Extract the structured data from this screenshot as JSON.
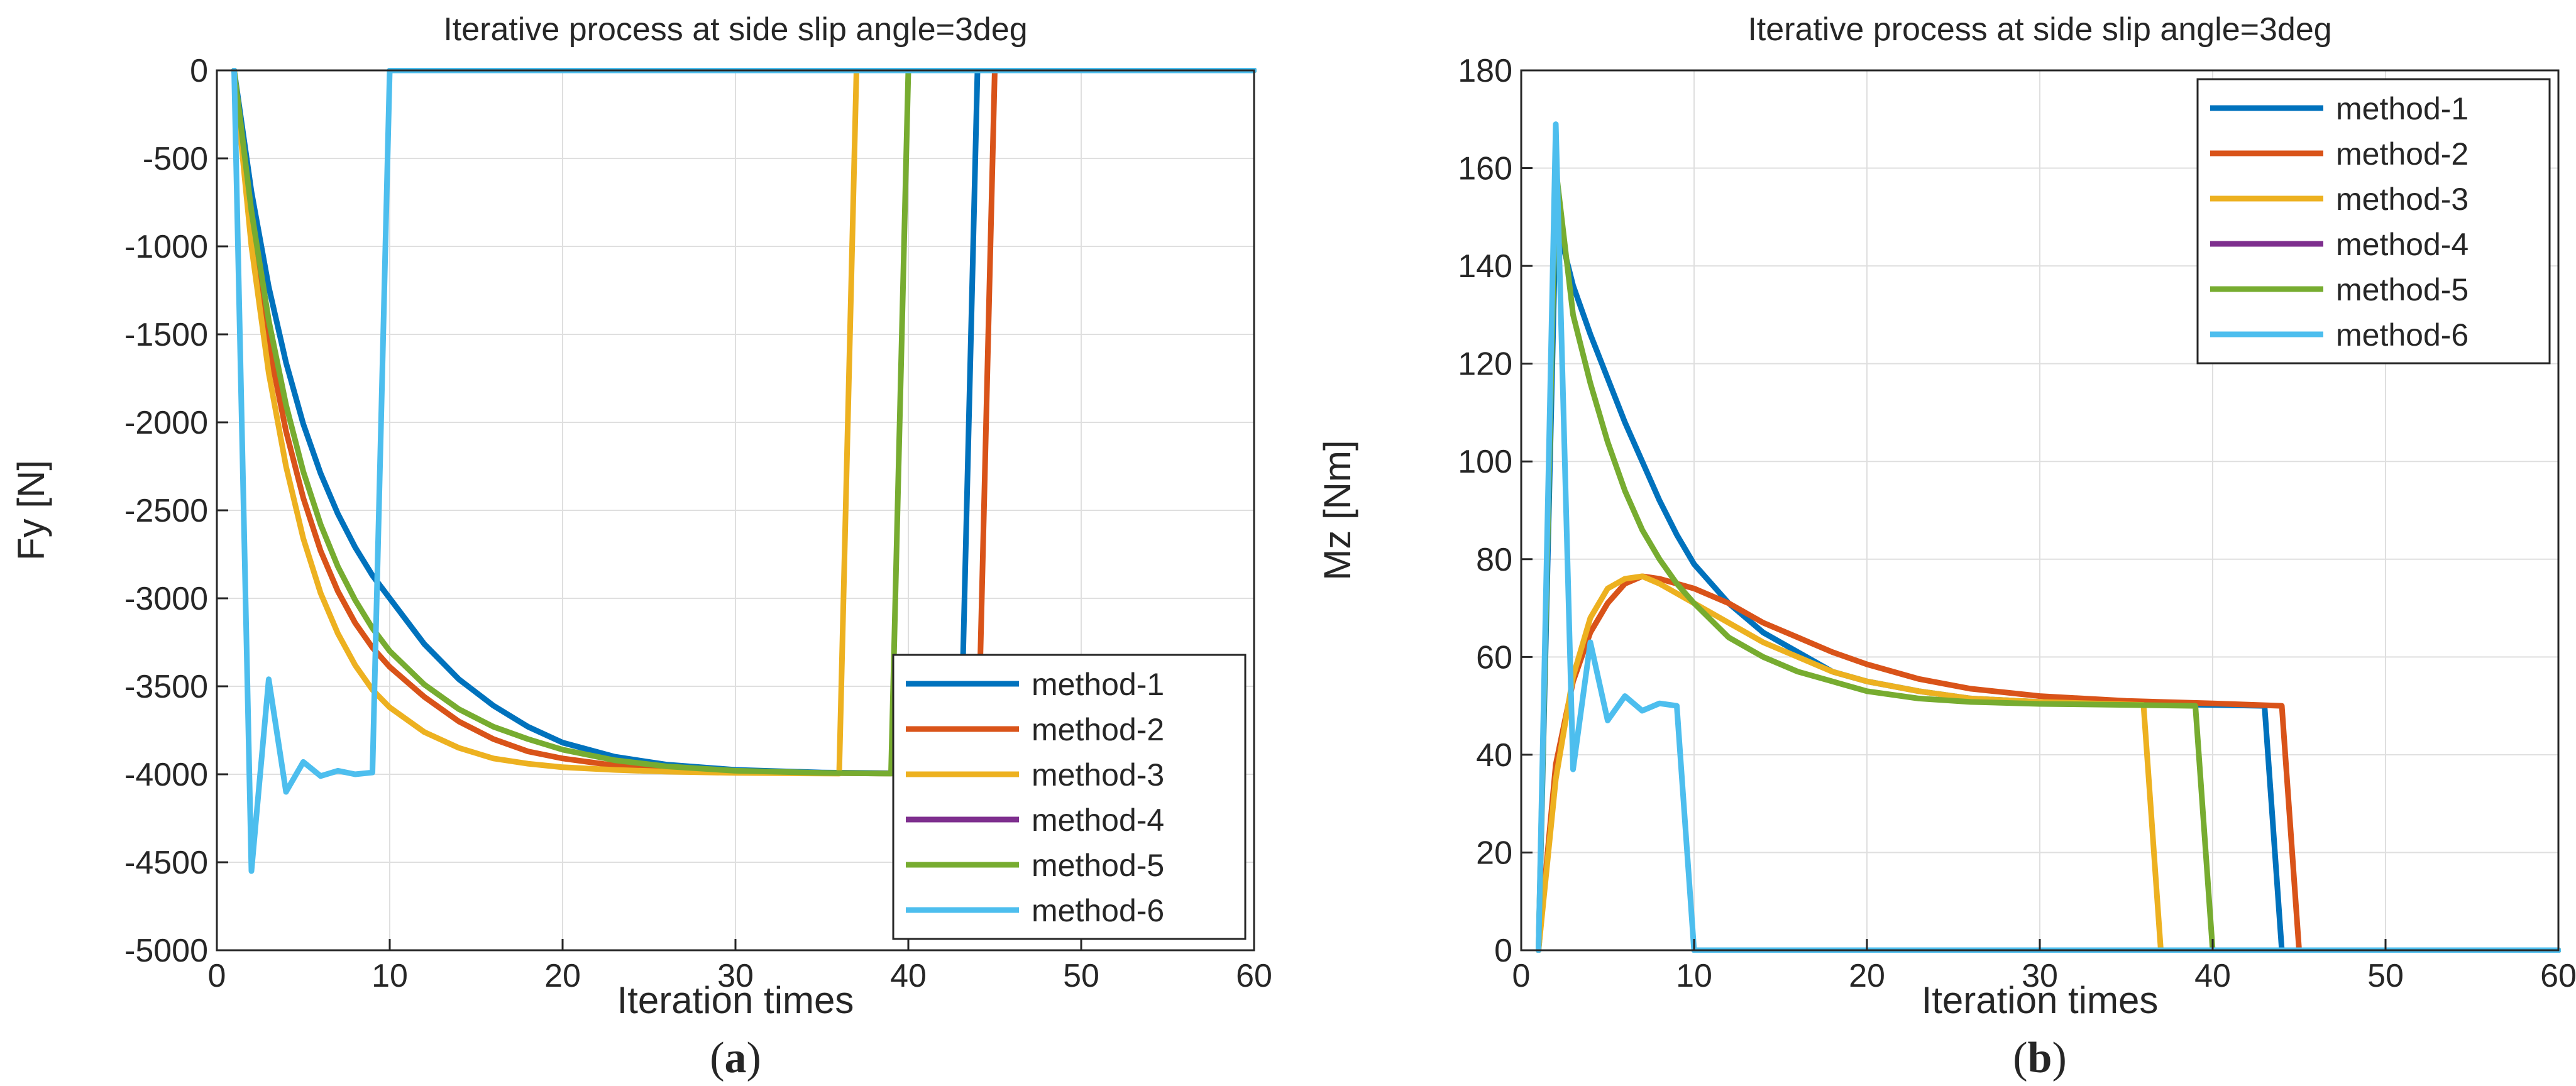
{
  "colors": {
    "method-1": "#0072BD",
    "method-2": "#D95319",
    "method-3": "#EDB120",
    "method-4": "#7E2F8E",
    "method-5": "#77AC30",
    "method-6": "#4DBEEE",
    "grid": "#dfdfdf",
    "axis": "#262626"
  },
  "chart_data": [
    {
      "type": "line",
      "caption_letter": "a",
      "title": "Iterative process at side slip angle=3deg",
      "xlabel": "Iteration times",
      "ylabel": "Fy [N]",
      "xlim": [
        0,
        60
      ],
      "ylim": [
        -5000,
        0
      ],
      "xticks": [
        0,
        10,
        20,
        30,
        40,
        50,
        60
      ],
      "yticks": [
        -5000,
        -4500,
        -4000,
        -3500,
        -3000,
        -2500,
        -2000,
        -1500,
        -1000,
        -500,
        0
      ],
      "xtick_labels": [
        "0",
        "10",
        "20",
        "30",
        "40",
        "50",
        "60"
      ],
      "ytick_labels": [
        "-5000",
        "-4500",
        "-4000",
        "-3500",
        "-3000",
        "-2500",
        "-2000",
        "-1500",
        "-1000",
        "-500",
        "0"
      ],
      "grid": true,
      "legend_position": "bottom-right",
      "series": [
        {
          "name": "method-1",
          "x": [
            1,
            2,
            3,
            4,
            5,
            6,
            7,
            8,
            9,
            10,
            12,
            14,
            16,
            18,
            20,
            23,
            26,
            30,
            35,
            40,
            43,
            44,
            45,
            60
          ],
          "y": [
            0,
            -690,
            -1230,
            -1660,
            -2010,
            -2290,
            -2520,
            -2710,
            -2870,
            -3000,
            -3260,
            -3460,
            -3610,
            -3730,
            -3820,
            -3900,
            -3945,
            -3975,
            -3990,
            -3995,
            -3997,
            0,
            0,
            0
          ]
        },
        {
          "name": "method-2",
          "x": [
            1,
            2,
            3,
            4,
            5,
            6,
            7,
            8,
            9,
            10,
            12,
            14,
            16,
            18,
            20,
            23,
            26,
            30,
            35,
            40,
            44,
            45,
            60
          ],
          "y": [
            0,
            -900,
            -1560,
            -2050,
            -2430,
            -2730,
            -2960,
            -3140,
            -3280,
            -3390,
            -3560,
            -3700,
            -3800,
            -3870,
            -3910,
            -3950,
            -3970,
            -3985,
            -3993,
            -3996,
            -3998,
            0,
            0
          ]
        },
        {
          "name": "method-3",
          "x": [
            1,
            2,
            3,
            4,
            5,
            6,
            7,
            8,
            9,
            10,
            12,
            14,
            16,
            18,
            20,
            23,
            26,
            30,
            36,
            37,
            60
          ],
          "y": [
            0,
            -1000,
            -1720,
            -2250,
            -2660,
            -2970,
            -3200,
            -3380,
            -3520,
            -3620,
            -3760,
            -3850,
            -3910,
            -3940,
            -3960,
            -3975,
            -3985,
            -3992,
            -3996,
            0,
            0
          ]
        },
        {
          "name": "method-4",
          "x": [],
          "y": []
        },
        {
          "name": "method-5",
          "x": [
            1,
            2,
            3,
            4,
            5,
            6,
            7,
            8,
            9,
            10,
            12,
            14,
            16,
            18,
            20,
            23,
            26,
            30,
            35,
            39,
            40,
            60
          ],
          "y": [
            0,
            -800,
            -1420,
            -1900,
            -2280,
            -2580,
            -2820,
            -3010,
            -3170,
            -3300,
            -3490,
            -3630,
            -3730,
            -3800,
            -3860,
            -3920,
            -3955,
            -3980,
            -3992,
            -3996,
            0,
            0
          ]
        },
        {
          "name": "method-6",
          "x": [
            1,
            2,
            3,
            4,
            5,
            6,
            7,
            8,
            9,
            10,
            60
          ],
          "y": [
            0,
            -4550,
            -3460,
            -4100,
            -3930,
            -4010,
            -3980,
            -4000,
            -3990,
            0,
            0
          ]
        }
      ]
    },
    {
      "type": "line",
      "caption_letter": "b",
      "title": "Iterative process at side slip angle=3deg",
      "xlabel": "Iteration times",
      "ylabel": "Mz [Nm]",
      "xlim": [
        0,
        60
      ],
      "ylim": [
        0,
        180
      ],
      "xticks": [
        0,
        10,
        20,
        30,
        40,
        50,
        60
      ],
      "yticks": [
        0,
        20,
        40,
        60,
        80,
        100,
        120,
        140,
        160,
        180
      ],
      "xtick_labels": [
        "0",
        "10",
        "20",
        "30",
        "40",
        "50",
        "60"
      ],
      "ytick_labels": [
        "0",
        "20",
        "40",
        "60",
        "80",
        "100",
        "120",
        "140",
        "160",
        "180"
      ],
      "grid": true,
      "legend_position": "top-right",
      "series": [
        {
          "name": "method-1",
          "x": [
            1,
            2,
            3,
            4,
            5,
            6,
            7,
            8,
            9,
            10,
            12,
            14,
            16,
            18,
            20,
            23,
            26,
            30,
            35,
            40,
            43,
            44,
            45,
            60
          ],
          "y": [
            0,
            150,
            136,
            126,
            117,
            108,
            100,
            92,
            85,
            79,
            71,
            65,
            61,
            57,
            55,
            53,
            51.5,
            50.8,
            50.4,
            50.2,
            50,
            0,
            0,
            0
          ]
        },
        {
          "name": "method-2",
          "x": [
            1,
            2,
            3,
            4,
            5,
            6,
            7,
            8,
            9,
            10,
            12,
            14,
            16,
            18,
            20,
            23,
            26,
            30,
            35,
            40,
            44,
            45,
            60
          ],
          "y": [
            0,
            38,
            55,
            65,
            71,
            75,
            76.5,
            76,
            75,
            74,
            71,
            67,
            64,
            61,
            58.5,
            55.5,
            53.5,
            52,
            51,
            50.5,
            50,
            0,
            0
          ]
        },
        {
          "name": "method-3",
          "x": [
            1,
            2,
            3,
            4,
            5,
            6,
            7,
            8,
            9,
            10,
            12,
            14,
            16,
            18,
            20,
            23,
            26,
            30,
            36,
            37,
            60
          ],
          "y": [
            0,
            35,
            56,
            68,
            74,
            76,
            76.5,
            75,
            73,
            71,
            67,
            63,
            60,
            57,
            55,
            53,
            51.5,
            50.8,
            50.2,
            0,
            0
          ]
        },
        {
          "name": "method-4",
          "x": [],
          "y": []
        },
        {
          "name": "method-5",
          "x": [
            1,
            2,
            3,
            4,
            5,
            6,
            7,
            8,
            9,
            10,
            12,
            14,
            16,
            18,
            20,
            23,
            26,
            30,
            35,
            39,
            40,
            60
          ],
          "y": [
            0,
            160,
            130,
            116,
            104,
            94,
            86,
            80,
            75,
            71,
            64,
            60,
            57,
            55,
            53,
            51.5,
            50.8,
            50.4,
            50.2,
            50,
            0,
            0
          ]
        },
        {
          "name": "method-6",
          "x": [
            1,
            2,
            3,
            4,
            5,
            6,
            7,
            8,
            9,
            10,
            60
          ],
          "y": [
            0,
            169,
            37,
            63,
            47,
            52,
            49,
            50.5,
            50,
            0,
            0
          ]
        }
      ]
    }
  ]
}
